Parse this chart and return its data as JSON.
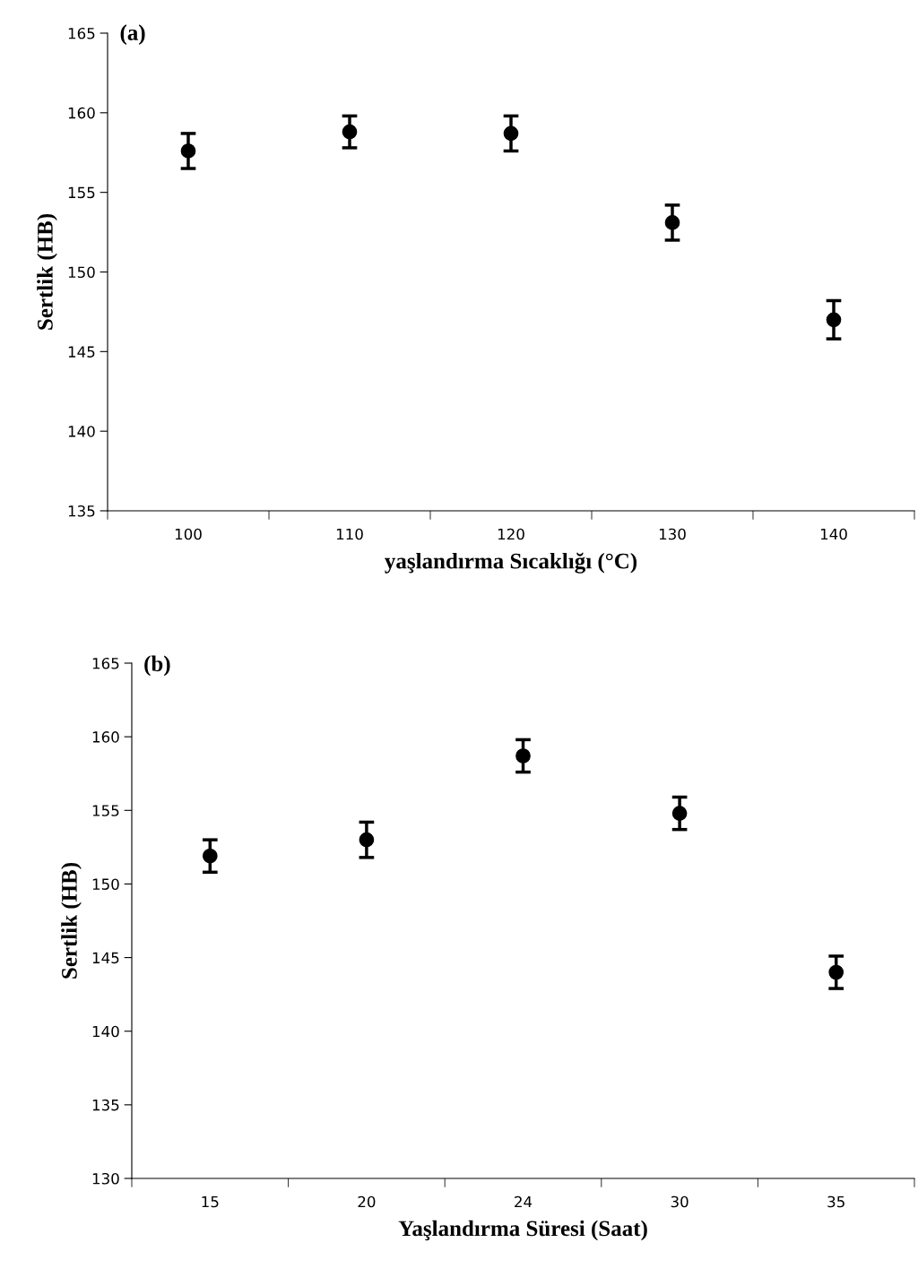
{
  "chart_data": [
    {
      "type": "scatter",
      "title": "(a)",
      "xlabel": "yaşlandırma Sıcaklığı (°C)",
      "ylabel": "Sertlik (HB)",
      "categories": [
        "100",
        "110",
        "120",
        "130",
        "140"
      ],
      "values": [
        157.6,
        158.8,
        158.7,
        153.1,
        147.0
      ],
      "errors": [
        1.1,
        1.0,
        1.1,
        1.1,
        1.2
      ],
      "color": "#000000",
      "marker": "circle",
      "ylim": [
        135,
        165
      ],
      "yticks": [
        135,
        140,
        145,
        150,
        155,
        160,
        165
      ],
      "grid": false,
      "legend": false
    },
    {
      "type": "scatter",
      "title": "(b)",
      "xlabel": "Yaşlandırma Süresi (Saat)",
      "ylabel": "Sertlik (HB)",
      "categories": [
        "15",
        "20",
        "24",
        "30",
        "35"
      ],
      "values": [
        151.9,
        153.0,
        158.7,
        154.8,
        144.0
      ],
      "errors": [
        1.1,
        1.2,
        1.1,
        1.1,
        1.1
      ],
      "color": "#000000",
      "marker": "circle",
      "ylim": [
        130,
        165
      ],
      "yticks": [
        130,
        135,
        140,
        145,
        150,
        155,
        160,
        165
      ],
      "grid": false,
      "legend": false
    }
  ]
}
